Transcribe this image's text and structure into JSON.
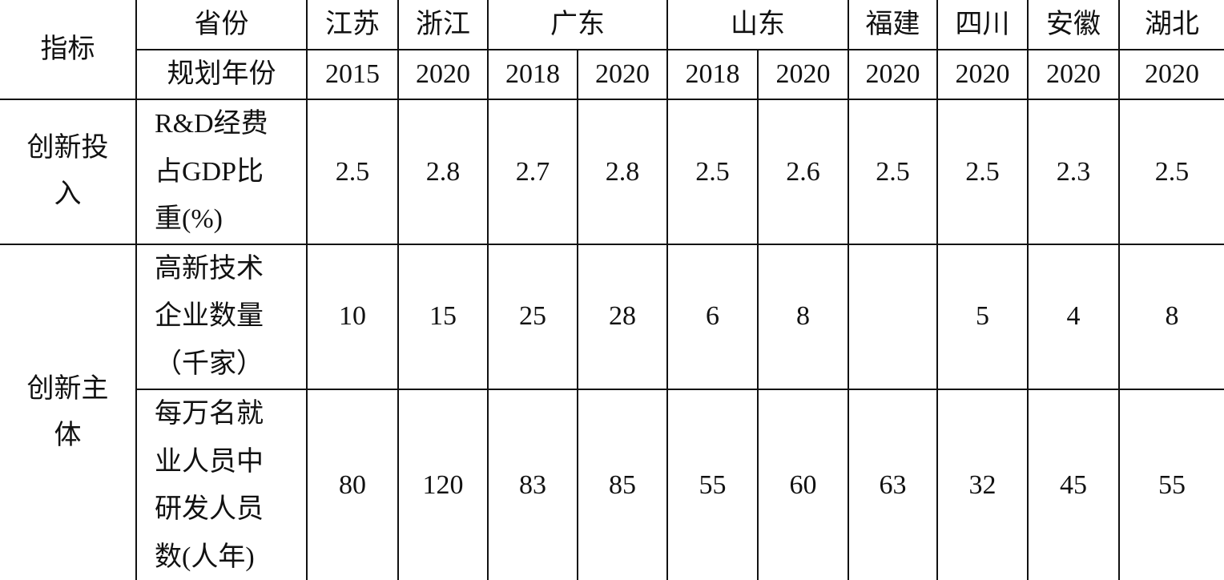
{
  "header": {
    "corner": "指标",
    "province_label": "省份",
    "year_label": "规划年份",
    "provinces": [
      {
        "name": "江苏",
        "years": [
          2015
        ]
      },
      {
        "name": "浙江",
        "years": [
          2020
        ]
      },
      {
        "name": "广东",
        "years": [
          2018,
          2020
        ]
      },
      {
        "name": "山东",
        "years": [
          2018,
          2020
        ]
      },
      {
        "name": "福建",
        "years": [
          2020
        ]
      },
      {
        "name": "四川",
        "years": [
          2020
        ]
      },
      {
        "name": "安徽",
        "years": [
          2020
        ]
      },
      {
        "name": "湖北",
        "years": [
          2020
        ]
      }
    ]
  },
  "groups": [
    {
      "label": "创新投入",
      "indicators": [
        {
          "label": "R&D经费占GDP比重(%)",
          "values": [
            2.5,
            2.8,
            2.7,
            2.8,
            2.5,
            2.6,
            2.5,
            2.5,
            2.3,
            2.5
          ]
        }
      ]
    },
    {
      "label": "创新主体",
      "indicators": [
        {
          "label": "高新技术企业数量（千家）",
          "values": [
            10,
            15,
            25,
            28,
            6,
            8,
            null,
            5,
            4,
            8
          ]
        },
        {
          "label": "每万名就业人员中研发人员数(人年)",
          "values": [
            80,
            120,
            83,
            85,
            55,
            60,
            63,
            32,
            45,
            55
          ]
        }
      ]
    }
  ]
}
